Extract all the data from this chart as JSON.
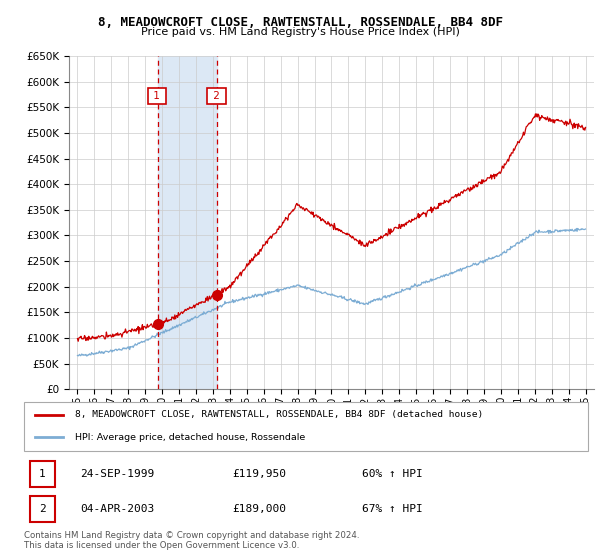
{
  "title": "8, MEADOWCROFT CLOSE, RAWTENSTALL, ROSSENDALE, BB4 8DF",
  "subtitle": "Price paid vs. HM Land Registry's House Price Index (HPI)",
  "legend_label_red": "8, MEADOWCROFT CLOSE, RAWTENSTALL, ROSSENDALE, BB4 8DF (detached house)",
  "legend_label_blue": "HPI: Average price, detached house, Rossendale",
  "transaction1_date": "24-SEP-1999",
  "transaction1_price": "£119,950",
  "transaction1_hpi": "60% ↑ HPI",
  "transaction2_date": "04-APR-2003",
  "transaction2_price": "£189,000",
  "transaction2_hpi": "67% ↑ HPI",
  "copyright_text": "Contains HM Land Registry data © Crown copyright and database right 2024.\nThis data is licensed under the Open Government Licence v3.0.",
  "ylim": [
    0,
    650000
  ],
  "yticks": [
    0,
    50000,
    100000,
    150000,
    200000,
    250000,
    300000,
    350000,
    400000,
    450000,
    500000,
    550000,
    600000,
    650000
  ],
  "red_color": "#cc0000",
  "blue_color": "#7dadd4",
  "span_color": "#dce8f5",
  "grid_color": "#cccccc",
  "transaction1_x": 1999.73,
  "transaction2_x": 2003.26,
  "red_seed": 17,
  "blue_seed": 42
}
